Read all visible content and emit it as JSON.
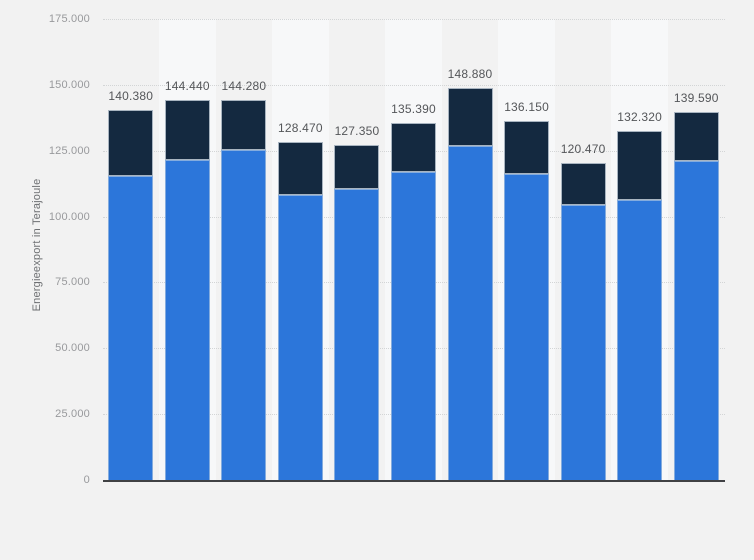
{
  "colors": {
    "background": "#f2f2f2",
    "stripe": "#f7f8f9",
    "grid": "#d3d5d6",
    "baseline": "#404144",
    "tick_text": "#98999c",
    "value_text": "#545659",
    "axis_title_text": "#6e7073",
    "series_bottom": "#2c76da",
    "series_top": "#142940"
  },
  "chart_data": {
    "type": "bar",
    "variant": "stacked",
    "title": "",
    "xlabel": "",
    "ylabel": "Energieexport in Terajoule",
    "ylim": [
      0,
      175000
    ],
    "ytick_interval": 25000,
    "ytick_labels": [
      "0",
      "25.000",
      "50.000",
      "75.000",
      "100.000",
      "125.000",
      "150.000",
      "175.000"
    ],
    "grid": "horizontal-dotted",
    "legend": "none",
    "x_tick_labels": [
      "",
      "",
      "",
      "",
      "",
      "",
      "",
      "",
      "",
      "",
      ""
    ],
    "series": [
      {
        "name": "bottom-segment-light-blue",
        "color": "#2c76da",
        "values": [
          115400,
          121300,
          125100,
          108050,
          110650,
          116900,
          126800,
          116050,
          104300,
          106300,
          121100
        ]
      },
      {
        "name": "top-segment-dark-navy",
        "color": "#142940",
        "values": [
          24980,
          23140,
          19180,
          20420,
          16700,
          18490,
          22080,
          20100,
          16170,
          26020,
          18490
        ]
      }
    ],
    "totals": [
      140380,
      144440,
      144280,
      128470,
      127350,
      135390,
      148880,
      136150,
      120470,
      132320,
      139590
    ],
    "total_labels": [
      "140.380",
      "144.440",
      "144.280",
      "128.470",
      "127.350",
      "135.390",
      "148.880",
      "136.150",
      "120.470",
      "132.320",
      "139.590"
    ]
  }
}
